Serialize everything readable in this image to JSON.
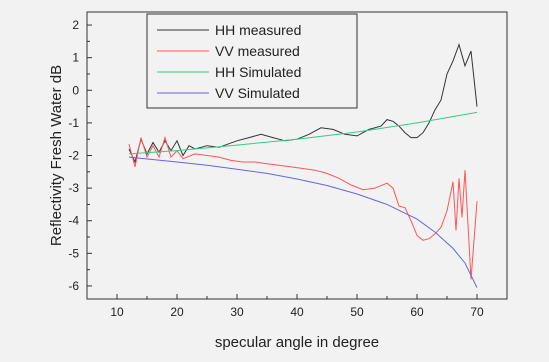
{
  "chart_data": {
    "type": "line",
    "title": "",
    "xlabel": "specular angle in degree",
    "ylabel": "Reflectivity  Fresh Water dB",
    "xlim": [
      5,
      75
    ],
    "ylim": [
      -6.4,
      2.4
    ],
    "x_ticks": [
      10,
      20,
      30,
      40,
      50,
      60,
      70
    ],
    "y_ticks": [
      2,
      1,
      0,
      -1,
      -2,
      -3,
      -4,
      -5,
      -6
    ],
    "grid": false,
    "legend_position": "top-left",
    "series": [
      {
        "name": "HH measured",
        "color": "#333333",
        "points": [
          [
            12,
            -1.8
          ],
          [
            13,
            -2.2
          ],
          [
            14,
            -1.5
          ],
          [
            15,
            -1.95
          ],
          [
            16,
            -1.6
          ],
          [
            17,
            -1.9
          ],
          [
            18,
            -1.55
          ],
          [
            19,
            -1.85
          ],
          [
            20,
            -1.55
          ],
          [
            21,
            -2.0
          ],
          [
            22,
            -1.7
          ],
          [
            23,
            -1.8
          ],
          [
            25,
            -1.7
          ],
          [
            27,
            -1.75
          ],
          [
            30,
            -1.55
          ],
          [
            32,
            -1.45
          ],
          [
            34,
            -1.35
          ],
          [
            36,
            -1.45
          ],
          [
            38,
            -1.55
          ],
          [
            40,
            -1.5
          ],
          [
            42,
            -1.35
          ],
          [
            44,
            -1.15
          ],
          [
            46,
            -1.2
          ],
          [
            48,
            -1.35
          ],
          [
            50,
            -1.4
          ],
          [
            52,
            -1.2
          ],
          [
            54,
            -1.1
          ],
          [
            55,
            -0.9
          ],
          [
            56,
            -0.95
          ],
          [
            57,
            -1.1
          ],
          [
            58,
            -1.3
          ],
          [
            59,
            -1.45
          ],
          [
            60,
            -1.45
          ],
          [
            61,
            -1.3
          ],
          [
            62,
            -1.0
          ],
          [
            63,
            -0.6
          ],
          [
            64,
            -0.3
          ],
          [
            65,
            0.5
          ],
          [
            66,
            0.9
          ],
          [
            67,
            1.4
          ],
          [
            68,
            0.75
          ],
          [
            69,
            1.2
          ],
          [
            70,
            -0.5
          ]
        ]
      },
      {
        "name": "VV measured",
        "color": "#ff5555",
        "points": [
          [
            12,
            -1.65
          ],
          [
            13,
            -2.35
          ],
          [
            14,
            -1.45
          ],
          [
            15,
            -2.05
          ],
          [
            16,
            -1.7
          ],
          [
            17,
            -2.05
          ],
          [
            18,
            -1.45
          ],
          [
            19,
            -2.05
          ],
          [
            20,
            -1.85
          ],
          [
            21,
            -2.1
          ],
          [
            23,
            -1.95
          ],
          [
            25,
            -2.0
          ],
          [
            27,
            -2.05
          ],
          [
            29,
            -2.15
          ],
          [
            31,
            -2.2
          ],
          [
            33,
            -2.2
          ],
          [
            35,
            -2.25
          ],
          [
            37,
            -2.3
          ],
          [
            39,
            -2.35
          ],
          [
            41,
            -2.4
          ],
          [
            43,
            -2.45
          ],
          [
            45,
            -2.55
          ],
          [
            47,
            -2.7
          ],
          [
            49,
            -2.9
          ],
          [
            51,
            -3.05
          ],
          [
            53,
            -3.0
          ],
          [
            55,
            -2.85
          ],
          [
            56,
            -3.0
          ],
          [
            57,
            -3.55
          ],
          [
            58,
            -3.6
          ],
          [
            59,
            -4.0
          ],
          [
            60,
            -4.45
          ],
          [
            61,
            -4.6
          ],
          [
            62,
            -4.55
          ],
          [
            63,
            -4.4
          ],
          [
            64,
            -4.2
          ],
          [
            65,
            -3.7
          ],
          [
            66,
            -2.8
          ],
          [
            66.5,
            -4.3
          ],
          [
            67,
            -2.7
          ],
          [
            67.5,
            -3.9
          ],
          [
            68,
            -2.45
          ],
          [
            69,
            -5.8
          ],
          [
            70,
            -3.4
          ]
        ]
      },
      {
        "name": "HH Simulated",
        "color": "#33cc88",
        "points": [
          [
            12,
            -1.95
          ],
          [
            20,
            -1.85
          ],
          [
            30,
            -1.68
          ],
          [
            40,
            -1.5
          ],
          [
            50,
            -1.28
          ],
          [
            60,
            -1.0
          ],
          [
            70,
            -0.68
          ]
        ]
      },
      {
        "name": "VV Simulated",
        "color": "#6666dd",
        "points": [
          [
            12,
            -2.05
          ],
          [
            20,
            -2.2
          ],
          [
            25,
            -2.3
          ],
          [
            30,
            -2.42
          ],
          [
            35,
            -2.55
          ],
          [
            40,
            -2.72
          ],
          [
            45,
            -2.92
          ],
          [
            50,
            -3.18
          ],
          [
            55,
            -3.5
          ],
          [
            60,
            -3.95
          ],
          [
            63,
            -4.35
          ],
          [
            66,
            -4.85
          ],
          [
            68,
            -5.3
          ],
          [
            70,
            -6.05
          ]
        ]
      }
    ]
  }
}
